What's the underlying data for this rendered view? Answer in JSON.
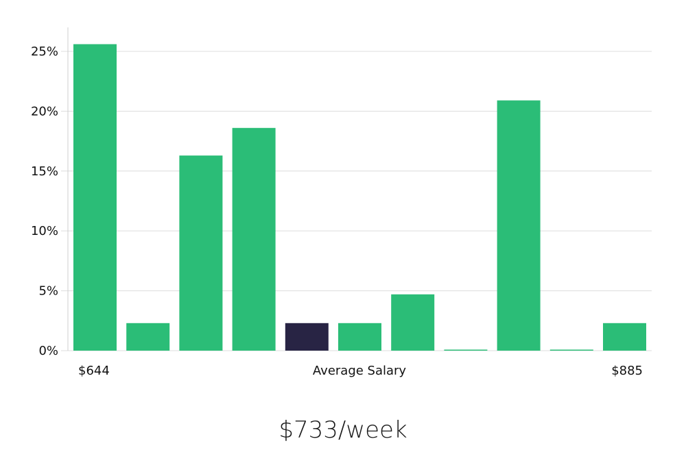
{
  "chart_data": {
    "type": "bar",
    "categories": [
      "$644",
      "",
      "",
      "",
      "",
      "",
      "",
      "",
      "",
      "",
      "$885"
    ],
    "values": [
      25.6,
      2.3,
      16.3,
      18.6,
      2.3,
      2.3,
      4.7,
      0.0,
      20.9,
      0.0,
      2.3
    ],
    "highlight_index": 4,
    "ylim": [
      0,
      27
    ],
    "yticks": [
      0,
      5,
      10,
      15,
      20,
      25
    ],
    "ytick_suffix": "%",
    "xlabel": "Average Salary",
    "x_start_label": "$644",
    "x_end_label": "$885",
    "grid": true,
    "colors": {
      "bar": "#2bbd77",
      "highlight": "#282444",
      "grid": "#dcdcdc"
    }
  },
  "summary": {
    "average_salary": "$733/week"
  }
}
